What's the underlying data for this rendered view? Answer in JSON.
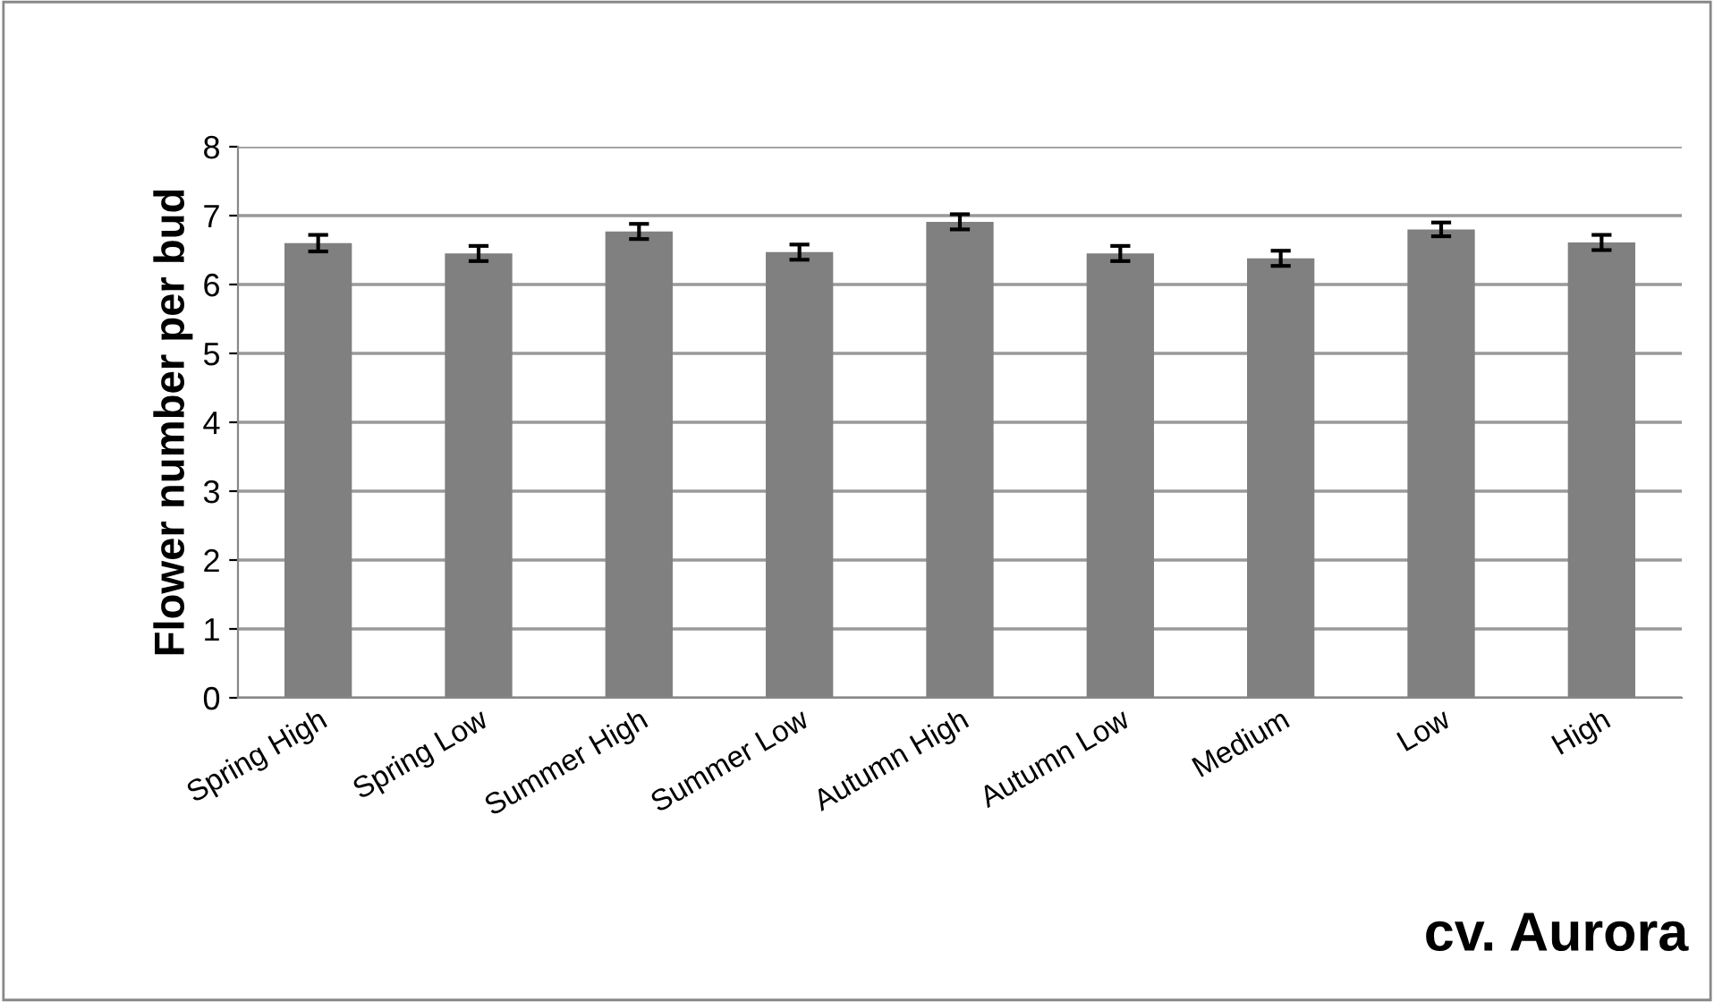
{
  "chart_data": {
    "type": "bar",
    "title": "cv. Aurora",
    "ylabel": "Flower number per bud",
    "categories": [
      "Spring High",
      "Spring Low",
      "Summer High",
      "Summer Low",
      "Autumn High",
      "Autumn Low",
      "Medium",
      "Low",
      "High"
    ],
    "values": [
      6.6,
      6.45,
      6.77,
      6.47,
      6.91,
      6.45,
      6.38,
      6.8,
      6.61
    ],
    "errors": [
      0.12,
      0.11,
      0.11,
      0.11,
      0.11,
      0.11,
      0.11,
      0.1,
      0.11
    ],
    "color": "#808080",
    "ylim": [
      0,
      8
    ],
    "yticks": [
      0,
      1,
      2,
      3,
      4,
      5,
      6,
      7,
      8
    ],
    "grid": "y"
  }
}
